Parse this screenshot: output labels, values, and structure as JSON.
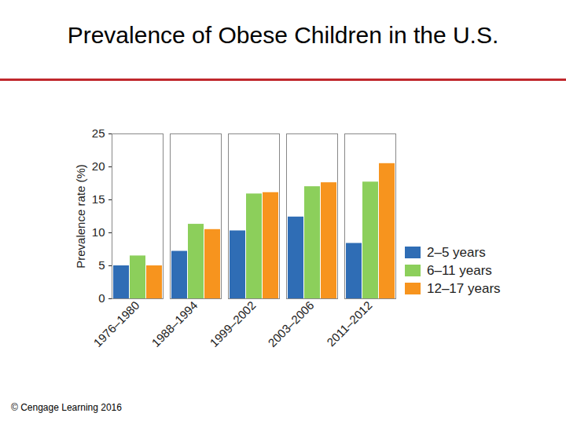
{
  "chart_data": {
    "type": "bar",
    "title": "Prevalence of Obese Children in the U.S.",
    "caption": "© Cengage Learning 2016",
    "y_label": "Prevalence rate (%)",
    "categories": [
      "1976–1980",
      "1988–1994",
      "1999–2002",
      "2003–2006",
      "2011–2012"
    ],
    "series": [
      {
        "name": "2–5 years",
        "color": "#2f6db5",
        "values": [
          5,
          7.2,
          10.3,
          12.4,
          8.4
        ]
      },
      {
        "name": "6–11 years",
        "color": "#8ccf5b",
        "values": [
          6.5,
          11.3,
          15.9,
          17,
          17.7
        ]
      },
      {
        "name": "12–17 years",
        "color": "#f7941e",
        "values": [
          5,
          10.5,
          16.1,
          17.6,
          20.5
        ]
      }
    ],
    "ylim": [
      0,
      25
    ],
    "yticks": [
      0,
      5,
      10,
      15,
      20,
      25
    ],
    "grid": false,
    "legend": "right"
  }
}
